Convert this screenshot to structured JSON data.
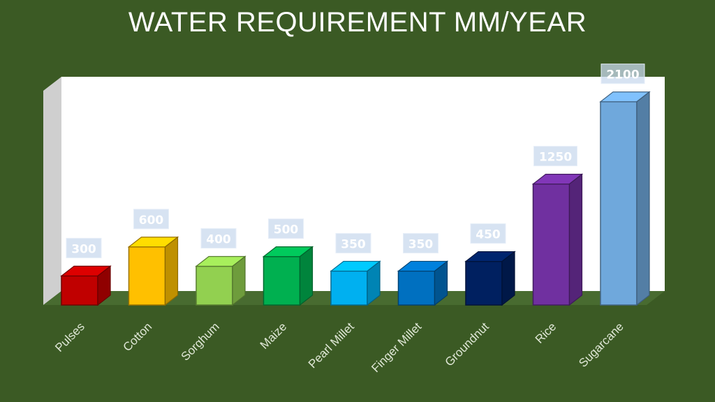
{
  "chart_data": {
    "type": "bar",
    "title": "WATER REQUIREMENT MM/YEAR",
    "categories": [
      "Pulses",
      "Cotton",
      "Sorghum",
      "Maize",
      "Pearl Millet",
      "Finger Millet",
      "Groundnut",
      "Rice",
      "Sugarcane"
    ],
    "values": [
      300,
      600,
      400,
      500,
      350,
      350,
      450,
      1250,
      2100
    ],
    "data_labels": [
      "300",
      "600",
      "400",
      "500",
      "350",
      "350",
      "450",
      "1250",
      "2100"
    ],
    "colors": [
      "#c00000",
      "#ffc000",
      "#92d050",
      "#00b050",
      "#00b0f0",
      "#0070c0",
      "#002060",
      "#7030a0",
      "#6fa8dc"
    ],
    "ylim": [
      0,
      2300
    ],
    "grid": false,
    "legend": "none",
    "style": "3d-columns"
  }
}
